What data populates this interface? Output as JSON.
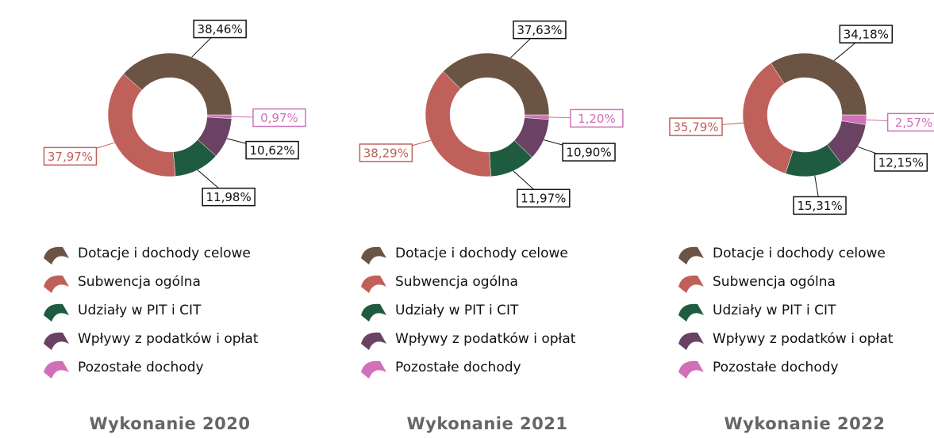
{
  "chart_data": [
    {
      "type": "donut",
      "title": "Wykonanie 2020",
      "categories": [
        "Dotacje i dochody celowe",
        "Subwencja ogólna",
        "Udziały w PIT i CIT",
        "Wpływy z podatków i opłat",
        "Pozostałe dochody"
      ],
      "values": [
        38.46,
        37.97,
        11.98,
        10.62,
        0.97
      ],
      "value_labels": [
        "38,46%",
        "37,97%",
        "11,98%",
        "10,62%",
        "0,97%"
      ],
      "colors": [
        "#6b5444",
        "#c0605a",
        "#1f5c3f",
        "#6a4263",
        "#d070b8"
      ]
    },
    {
      "type": "donut",
      "title": "Wykonanie 2021",
      "categories": [
        "Dotacje i dochody celowe",
        "Subwencja ogólna",
        "Udziały w PIT i CIT",
        "Wpływy z podatków i opłat",
        "Pozostałe dochody"
      ],
      "values": [
        37.63,
        38.29,
        11.97,
        10.9,
        1.2
      ],
      "value_labels": [
        "37,63%",
        "38,29%",
        "11,97%",
        "10,90%",
        "1,20%"
      ],
      "colors": [
        "#6b5444",
        "#c0605a",
        "#1f5c3f",
        "#6a4263",
        "#d070b8"
      ]
    },
    {
      "type": "donut",
      "title": "Wykonanie 2022",
      "categories": [
        "Dotacje i dochody celowe",
        "Subwencja ogólna",
        "Udziały w PIT i CIT",
        "Wpływy z podatków i opłat",
        "Pozostałe dochody"
      ],
      "values": [
        34.18,
        35.79,
        15.31,
        12.15,
        2.57
      ],
      "value_labels": [
        "34,18%",
        "35,79%",
        "15,31%",
        "12,15%",
        "2,57%"
      ],
      "colors": [
        "#6b5444",
        "#c0605a",
        "#1f5c3f",
        "#6a4263",
        "#d070b8"
      ]
    }
  ]
}
